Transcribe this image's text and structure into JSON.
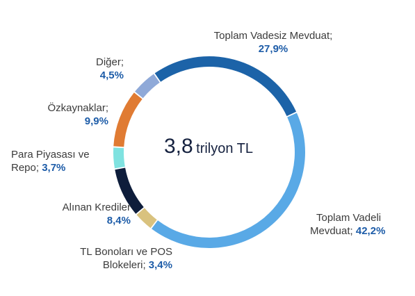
{
  "center_label": {
    "value": "3,8",
    "unit": "trilyon TL"
  },
  "chart_data": {
    "type": "pie",
    "subtype": "donut",
    "slices": [
      {
        "name": "Toplam Vadesiz Mevduat;",
        "value": 27.9,
        "label": "27,9%",
        "color": "#1c63a8"
      },
      {
        "name": "Toplam Vadeli Mevduat;",
        "value": 42.2,
        "label": "42,2%",
        "color": "#59a9e6"
      },
      {
        "name": "TL Bonoları ve POS Blokeleri;",
        "value": 3.4,
        "label": "3,4%",
        "color": "#d9c27e"
      },
      {
        "name": "Alınan Krediler",
        "value": 8.4,
        "label": "8,4%",
        "color": "#0e1d3b"
      },
      {
        "name": "Para Piyasası ve Repo;",
        "value": 3.7,
        "label": "3,7%",
        "color": "#7fe2e0"
      },
      {
        "name": "Özkaynaklar;",
        "value": 9.9,
        "label": "9,9%",
        "color": "#e07b33"
      },
      {
        "name": "Diğer;",
        "value": 4.5,
        "label": "4,5%",
        "color": "#8fa9d8"
      }
    ]
  },
  "labels": {
    "vadesiz": {
      "line1": "Toplam Vadesiz Mevduat;",
      "value": "27,9%"
    },
    "vadeli": {
      "line1": "Toplam Vadeli",
      "line2": "Mevduat;",
      "value": "42,2%"
    },
    "bono": {
      "line1": "TL Bonoları ve POS",
      "line2": "Blokeleri;",
      "value": "3,4%"
    },
    "kredi": {
      "line1": "Alınan Krediler",
      "value": "8,4%"
    },
    "repo": {
      "line1": "Para Piyasası ve",
      "line2": "Repo;",
      "value": "3,7%"
    },
    "ozkaynak": {
      "line1": "Özkaynaklar;",
      "value": "9,9%"
    },
    "diger": {
      "line1": "Diğer;",
      "value": "4,5%"
    }
  }
}
